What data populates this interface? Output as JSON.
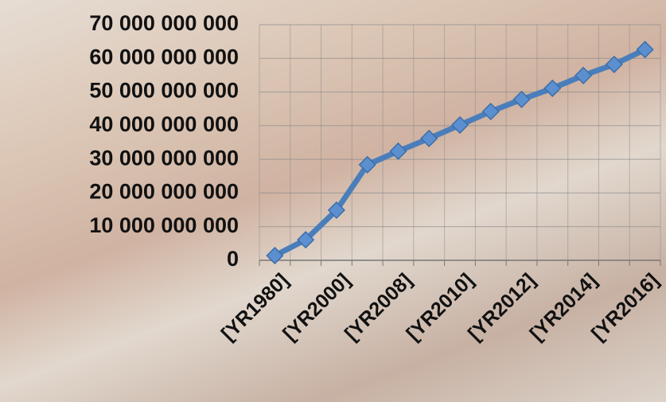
{
  "chart_data": {
    "type": "line",
    "categories": [
      "[YR1980]",
      null,
      "[YR2000]",
      null,
      "[YR2008]",
      null,
      "[YR2010]",
      null,
      "[YR2012]",
      null,
      "[YR2014]",
      null,
      "[YR2016]"
    ],
    "series": [
      {
        "color": "#4a7ebb",
        "values": [
          1400000000,
          6100000000,
          14900000000,
          28400000000,
          32400000000,
          36200000000,
          40200000000,
          44200000000,
          47800000000,
          51100000000,
          54900000000,
          58200000000,
          62600000000
        ]
      }
    ],
    "ylim": [
      0,
      70000000000
    ],
    "yticks": [
      0,
      {
        "value": 10000000000,
        "label": "10 000 000 000"
      },
      {
        "value": 20000000000,
        "label": "20 000 000 000"
      },
      {
        "value": 30000000000,
        "label": "30 000 000 000"
      },
      {
        "value": 40000000000,
        "label": "40 000 000 000"
      },
      {
        "value": 50000000000,
        "label": "50 000 000 000"
      },
      {
        "value": 60000000000,
        "label": "60 000 000 000"
      },
      {
        "value": 70000000000,
        "label": "70 000 000 000"
      }
    ],
    "grid": true
  }
}
